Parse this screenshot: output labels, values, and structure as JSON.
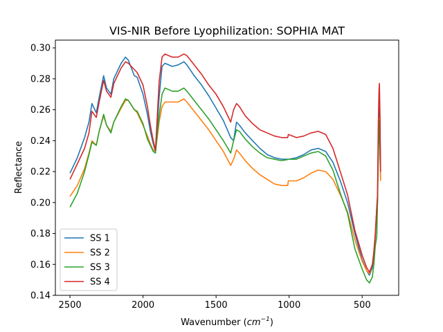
{
  "chart_data": {
    "type": "line",
    "title": "VIS-NIR Before Lyophilization: SOPHIA MAT",
    "xlabel_main": "Wavenumber (",
    "xlabel_unit_base": "cm",
    "xlabel_unit_exp": "−1",
    "xlabel_close": ")",
    "ylabel": "Reflectance",
    "xlim": [
      2600,
      250
    ],
    "ylim": [
      0.14,
      0.305
    ],
    "x_reversed": true,
    "xticks": [
      2500,
      2000,
      1500,
      1000,
      500
    ],
    "xtick_labels": [
      "2500",
      "2000",
      "1500",
      "1000",
      "500"
    ],
    "yticks": [
      0.14,
      0.16,
      0.18,
      0.2,
      0.22,
      0.24,
      0.26,
      0.28,
      0.3
    ],
    "ytick_labels": [
      "0.14",
      "0.16",
      "0.18",
      "0.20",
      "0.22",
      "0.24",
      "0.26",
      "0.28",
      "0.30"
    ],
    "grid": false,
    "legend_position": "lower-left",
    "series": [
      {
        "name": "SS 1",
        "color": "#1f77b4",
        "points": [
          [
            2500,
            0.219
          ],
          [
            2450,
            0.229
          ],
          [
            2400,
            0.242
          ],
          [
            2370,
            0.252
          ],
          [
            2350,
            0.264
          ],
          [
            2320,
            0.258
          ],
          [
            2300,
            0.268
          ],
          [
            2270,
            0.282
          ],
          [
            2250,
            0.274
          ],
          [
            2220,
            0.27
          ],
          [
            2200,
            0.28
          ],
          [
            2150,
            0.29
          ],
          [
            2120,
            0.294
          ],
          [
            2100,
            0.292
          ],
          [
            2060,
            0.282
          ],
          [
            2040,
            0.281
          ],
          [
            2000,
            0.27
          ],
          [
            1970,
            0.257
          ],
          [
            1950,
            0.246
          ],
          [
            1930,
            0.238
          ],
          [
            1915,
            0.233
          ],
          [
            1890,
            0.268
          ],
          [
            1870,
            0.288
          ],
          [
            1850,
            0.29
          ],
          [
            1800,
            0.288
          ],
          [
            1760,
            0.289
          ],
          [
            1720,
            0.291
          ],
          [
            1700,
            0.289
          ],
          [
            1650,
            0.282
          ],
          [
            1600,
            0.276
          ],
          [
            1550,
            0.269
          ],
          [
            1500,
            0.261
          ],
          [
            1450,
            0.253
          ],
          [
            1400,
            0.242
          ],
          [
            1380,
            0.24
          ],
          [
            1360,
            0.252
          ],
          [
            1340,
            0.25
          ],
          [
            1300,
            0.245
          ],
          [
            1250,
            0.24
          ],
          [
            1200,
            0.235
          ],
          [
            1150,
            0.231
          ],
          [
            1100,
            0.229
          ],
          [
            1050,
            0.228
          ],
          [
            1000,
            0.228
          ],
          [
            950,
            0.229
          ],
          [
            900,
            0.231
          ],
          [
            850,
            0.234
          ],
          [
            800,
            0.235
          ],
          [
            750,
            0.233
          ],
          [
            700,
            0.226
          ],
          [
            650,
            0.214
          ],
          [
            600,
            0.2
          ],
          [
            550,
            0.18
          ],
          [
            500,
            0.163
          ],
          [
            470,
            0.156
          ],
          [
            450,
            0.153
          ],
          [
            430,
            0.158
          ],
          [
            420,
            0.166
          ],
          [
            410,
            0.178
          ],
          [
            400,
            0.196
          ],
          [
            395,
            0.2
          ],
          [
            390,
            0.24
          ],
          [
            385,
            0.262
          ],
          [
            382,
            0.275
          ],
          [
            378,
            0.25
          ],
          [
            374,
            0.215
          ]
        ]
      },
      {
        "name": "SS 2",
        "color": "#ff7f0e",
        "points": [
          [
            2500,
            0.204
          ],
          [
            2450,
            0.211
          ],
          [
            2400,
            0.222
          ],
          [
            2370,
            0.232
          ],
          [
            2350,
            0.24
          ],
          [
            2320,
            0.237
          ],
          [
            2300,
            0.246
          ],
          [
            2270,
            0.256
          ],
          [
            2250,
            0.25
          ],
          [
            2220,
            0.246
          ],
          [
            2200,
            0.252
          ],
          [
            2150,
            0.261
          ],
          [
            2120,
            0.266
          ],
          [
            2100,
            0.266
          ],
          [
            2060,
            0.26
          ],
          [
            2040,
            0.258
          ],
          [
            2000,
            0.25
          ],
          [
            1970,
            0.243
          ],
          [
            1950,
            0.238
          ],
          [
            1930,
            0.234
          ],
          [
            1915,
            0.233
          ],
          [
            1890,
            0.252
          ],
          [
            1870,
            0.262
          ],
          [
            1850,
            0.265
          ],
          [
            1800,
            0.265
          ],
          [
            1760,
            0.265
          ],
          [
            1720,
            0.267
          ],
          [
            1700,
            0.265
          ],
          [
            1650,
            0.259
          ],
          [
            1600,
            0.253
          ],
          [
            1550,
            0.247
          ],
          [
            1500,
            0.24
          ],
          [
            1450,
            0.233
          ],
          [
            1400,
            0.224
          ],
          [
            1380,
            0.228
          ],
          [
            1360,
            0.234
          ],
          [
            1340,
            0.232
          ],
          [
            1300,
            0.227
          ],
          [
            1250,
            0.222
          ],
          [
            1200,
            0.218
          ],
          [
            1150,
            0.215
          ],
          [
            1100,
            0.212
          ],
          [
            1050,
            0.211
          ],
          [
            1010,
            0.211
          ],
          [
            1005,
            0.214
          ],
          [
            950,
            0.214
          ],
          [
            900,
            0.216
          ],
          [
            850,
            0.219
          ],
          [
            800,
            0.221
          ],
          [
            750,
            0.22
          ],
          [
            700,
            0.215
          ],
          [
            650,
            0.205
          ],
          [
            600,
            0.194
          ],
          [
            550,
            0.176
          ],
          [
            500,
            0.162
          ],
          [
            470,
            0.156
          ],
          [
            450,
            0.154
          ],
          [
            430,
            0.16
          ],
          [
            420,
            0.168
          ],
          [
            410,
            0.18
          ],
          [
            400,
            0.196
          ],
          [
            395,
            0.203
          ],
          [
            390,
            0.23
          ],
          [
            385,
            0.255
          ],
          [
            382,
            0.25
          ],
          [
            378,
            0.23
          ],
          [
            374,
            0.214
          ]
        ]
      },
      {
        "name": "SS 3",
        "color": "#2ca02c",
        "points": [
          [
            2500,
            0.197
          ],
          [
            2450,
            0.206
          ],
          [
            2400,
            0.22
          ],
          [
            2370,
            0.231
          ],
          [
            2350,
            0.239
          ],
          [
            2320,
            0.237
          ],
          [
            2300,
            0.246
          ],
          [
            2270,
            0.257
          ],
          [
            2250,
            0.25
          ],
          [
            2220,
            0.245
          ],
          [
            2200,
            0.252
          ],
          [
            2150,
            0.262
          ],
          [
            2120,
            0.267
          ],
          [
            2100,
            0.266
          ],
          [
            2060,
            0.26
          ],
          [
            2040,
            0.259
          ],
          [
            2000,
            0.251
          ],
          [
            1970,
            0.241
          ],
          [
            1950,
            0.237
          ],
          [
            1930,
            0.233
          ],
          [
            1915,
            0.232
          ],
          [
            1890,
            0.256
          ],
          [
            1870,
            0.27
          ],
          [
            1850,
            0.274
          ],
          [
            1800,
            0.272
          ],
          [
            1760,
            0.272
          ],
          [
            1720,
            0.274
          ],
          [
            1700,
            0.272
          ],
          [
            1650,
            0.266
          ],
          [
            1600,
            0.26
          ],
          [
            1550,
            0.254
          ],
          [
            1500,
            0.247
          ],
          [
            1450,
            0.24
          ],
          [
            1400,
            0.232
          ],
          [
            1380,
            0.24
          ],
          [
            1360,
            0.247
          ],
          [
            1340,
            0.246
          ],
          [
            1300,
            0.241
          ],
          [
            1250,
            0.236
          ],
          [
            1200,
            0.232
          ],
          [
            1150,
            0.229
          ],
          [
            1100,
            0.228
          ],
          [
            1050,
            0.227
          ],
          [
            1000,
            0.228
          ],
          [
            950,
            0.228
          ],
          [
            900,
            0.23
          ],
          [
            850,
            0.232
          ],
          [
            800,
            0.233
          ],
          [
            750,
            0.23
          ],
          [
            700,
            0.221
          ],
          [
            650,
            0.206
          ],
          [
            600,
            0.193
          ],
          [
            550,
            0.17
          ],
          [
            500,
            0.157
          ],
          [
            470,
            0.15
          ],
          [
            450,
            0.148
          ],
          [
            430,
            0.152
          ],
          [
            420,
            0.16
          ],
          [
            410,
            0.172
          ],
          [
            400,
            0.178
          ],
          [
            395,
            0.2
          ],
          [
            390,
            0.23
          ],
          [
            385,
            0.253
          ],
          [
            382,
            0.245
          ],
          [
            378,
            0.232
          ],
          [
            374,
            0.22
          ]
        ]
      },
      {
        "name": "SS 4",
        "color": "#d62728",
        "points": [
          [
            2500,
            0.215
          ],
          [
            2450,
            0.225
          ],
          [
            2400,
            0.235
          ],
          [
            2370,
            0.245
          ],
          [
            2350,
            0.259
          ],
          [
            2320,
            0.255
          ],
          [
            2300,
            0.265
          ],
          [
            2270,
            0.279
          ],
          [
            2250,
            0.272
          ],
          [
            2220,
            0.268
          ],
          [
            2200,
            0.277
          ],
          [
            2150,
            0.287
          ],
          [
            2120,
            0.291
          ],
          [
            2100,
            0.29
          ],
          [
            2060,
            0.286
          ],
          [
            2040,
            0.284
          ],
          [
            2000,
            0.276
          ],
          [
            1970,
            0.262
          ],
          [
            1950,
            0.25
          ],
          [
            1930,
            0.24
          ],
          [
            1915,
            0.234
          ],
          [
            1890,
            0.278
          ],
          [
            1870,
            0.294
          ],
          [
            1850,
            0.296
          ],
          [
            1800,
            0.294
          ],
          [
            1760,
            0.294
          ],
          [
            1720,
            0.296
          ],
          [
            1700,
            0.295
          ],
          [
            1650,
            0.289
          ],
          [
            1600,
            0.283
          ],
          [
            1550,
            0.276
          ],
          [
            1500,
            0.27
          ],
          [
            1450,
            0.262
          ],
          [
            1400,
            0.252
          ],
          [
            1380,
            0.26
          ],
          [
            1360,
            0.264
          ],
          [
            1340,
            0.262
          ],
          [
            1300,
            0.256
          ],
          [
            1250,
            0.251
          ],
          [
            1200,
            0.247
          ],
          [
            1150,
            0.245
          ],
          [
            1100,
            0.243
          ],
          [
            1050,
            0.242
          ],
          [
            1010,
            0.242
          ],
          [
            1005,
            0.244
          ],
          [
            950,
            0.242
          ],
          [
            900,
            0.243
          ],
          [
            850,
            0.245
          ],
          [
            800,
            0.246
          ],
          [
            750,
            0.244
          ],
          [
            700,
            0.235
          ],
          [
            650,
            0.22
          ],
          [
            600,
            0.205
          ],
          [
            550,
            0.182
          ],
          [
            500,
            0.166
          ],
          [
            470,
            0.158
          ],
          [
            450,
            0.155
          ],
          [
            430,
            0.16
          ],
          [
            420,
            0.168
          ],
          [
            410,
            0.18
          ],
          [
            400,
            0.197
          ],
          [
            395,
            0.205
          ],
          [
            390,
            0.25
          ],
          [
            385,
            0.272
          ],
          [
            382,
            0.277
          ],
          [
            378,
            0.255
          ],
          [
            374,
            0.22
          ]
        ]
      }
    ]
  }
}
